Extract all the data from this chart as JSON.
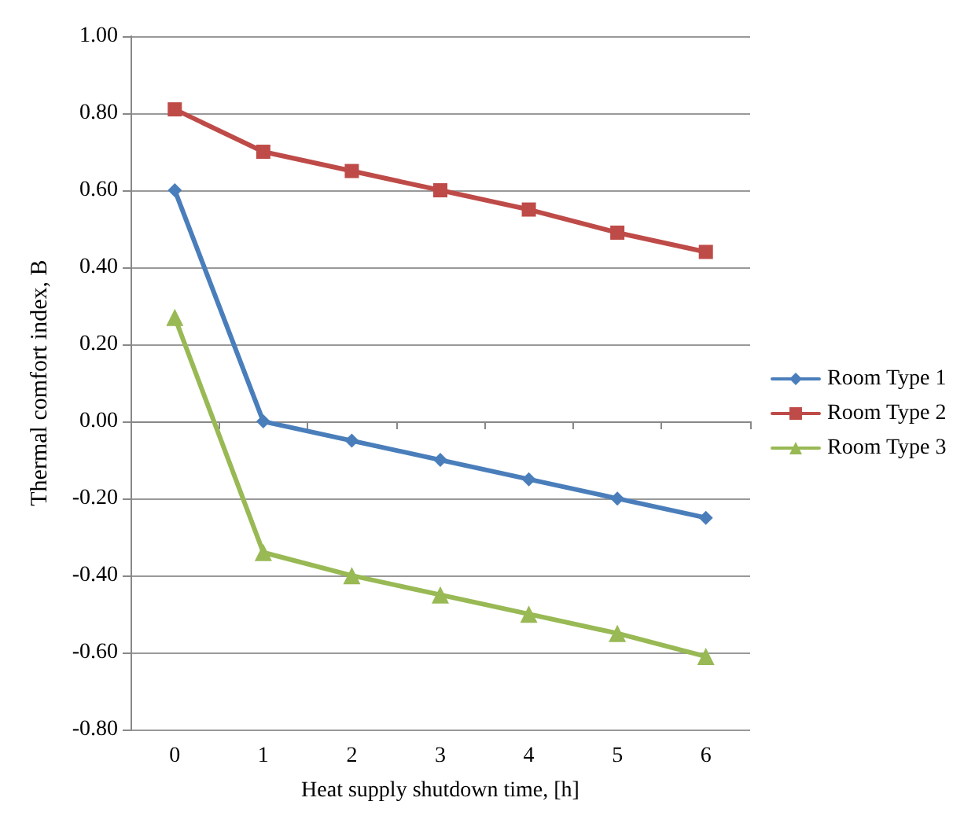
{
  "chart_data": {
    "type": "line",
    "xlabel": "Heat supply shutdown time, [h]",
    "ylabel": "Thermal comfort index, В",
    "categories": [
      "0",
      "1",
      "2",
      "3",
      "4",
      "5",
      "6"
    ],
    "series": [
      {
        "name": "Room Type 1",
        "color": "#4a7ebb",
        "marker": "diamond",
        "values": [
          0.6,
          0.0,
          -0.05,
          -0.1,
          -0.15,
          -0.2,
          -0.25
        ]
      },
      {
        "name": "Room Type 2",
        "color": "#be4b48",
        "marker": "square",
        "values": [
          0.81,
          0.7,
          0.65,
          0.6,
          0.55,
          0.49,
          0.44
        ]
      },
      {
        "name": "Room Type 3",
        "color": "#98b954",
        "marker": "triangle",
        "values": [
          0.27,
          -0.34,
          -0.4,
          -0.45,
          -0.5,
          -0.55,
          -0.61
        ]
      }
    ],
    "ylim": [
      -0.8,
      1.0
    ],
    "yticks": [
      {
        "value": -0.8,
        "label": "-0.80"
      },
      {
        "value": -0.6,
        "label": "-0.60"
      },
      {
        "value": -0.4,
        "label": "-0.40"
      },
      {
        "value": -0.2,
        "label": "-0.20"
      },
      {
        "value": 0,
        "label": "0.00"
      },
      {
        "value": 0.2,
        "label": "0.20"
      },
      {
        "value": 0.4,
        "label": "0.40"
      },
      {
        "value": 0.6,
        "label": "0.60"
      },
      {
        "value": 0.8,
        "label": "0.80"
      },
      {
        "value": 1.0,
        "label": "1.00"
      }
    ],
    "grid": "y",
    "legend": "right",
    "line_style": "solid"
  }
}
